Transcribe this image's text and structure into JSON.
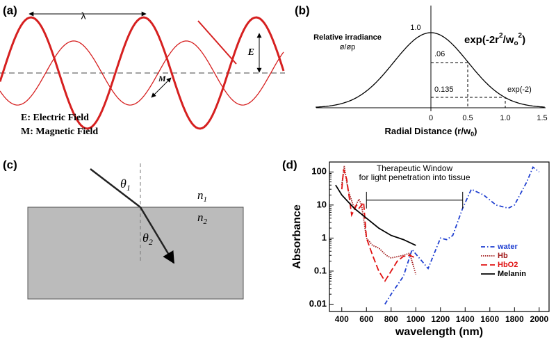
{
  "panel_a": {
    "label": "(a)",
    "wavelength": "λ",
    "e_marker": "E",
    "m_marker": "M",
    "legend": [
      "E: Electric Field",
      "M: Magnetic Field"
    ]
  },
  "panel_b": {
    "label": "(b)",
    "y_title": "Relative irradiance",
    "y_subtitle": "ø/øp",
    "formula": [
      "exp(-2r",
      "2",
      "/w",
      "o",
      "2",
      ")"
    ],
    "peak": "1.0",
    "mark_half": ".06",
    "mark_one": "0.135",
    "mark_exp": "exp(-2)",
    "x_ticks": [
      "0",
      "0.5",
      "1.0",
      "1.5"
    ],
    "x_title": [
      "Radial Distance (r/w",
      "0",
      ")"
    ]
  },
  "panel_c": {
    "label": "(c)",
    "theta1": [
      "θ",
      "1"
    ],
    "theta2": [
      "θ",
      "2"
    ],
    "n1": [
      "n",
      "1"
    ],
    "n2": [
      "n",
      "2"
    ]
  },
  "chart_data": {
    "type": "line",
    "label": "(d)",
    "x_label": "wavelength (nm)",
    "y_label": "Absorbance",
    "xlim": [
      300,
      2080
    ],
    "xticks": [
      400,
      600,
      800,
      1000,
      1200,
      1400,
      1600,
      1800,
      2000
    ],
    "ylim": [
      0.006,
      200
    ],
    "yticks": [
      0.01,
      0.1,
      1,
      10,
      100
    ],
    "yscale": "log",
    "legend": "lower right",
    "annotation": {
      "text": [
        "Therapeutic Window",
        "for light penetration into tissue"
      ],
      "x": [
        600,
        1380
      ],
      "y": 14
    },
    "series": [
      {
        "name": "water",
        "color": "#1f3fd0",
        "style": "dash-dot",
        "x": [
          750,
          800,
          900,
          970,
          1050,
          1100,
          1200,
          1250,
          1300,
          1380,
          1450,
          1550,
          1650,
          1750,
          1800,
          1900,
          1950,
          2000
        ],
        "values": [
          0.01,
          0.02,
          0.07,
          0.45,
          0.2,
          0.12,
          1,
          0.9,
          1.2,
          8,
          30,
          20,
          10,
          8,
          10,
          50,
          140,
          100
        ]
      },
      {
        "name": "Hb",
        "color": "#a01818",
        "style": "dotted",
        "x": [
          400,
          420,
          450,
          500,
          540,
          560,
          600,
          650,
          700,
          760,
          800,
          900,
          950,
          1000
        ],
        "values": [
          40,
          150,
          30,
          8,
          15,
          10,
          1,
          0.6,
          0.5,
          0.3,
          0.25,
          0.3,
          0.35,
          0.08
        ]
      },
      {
        "name": "HbO2",
        "color": "#e01010",
        "style": "dashed",
        "x": [
          400,
          415,
          440,
          480,
          520,
          540,
          577,
          600,
          650,
          700,
          750,
          800,
          850,
          900,
          950,
          1000
        ],
        "values": [
          30,
          120,
          60,
          5,
          10,
          8,
          12,
          1,
          0.3,
          0.1,
          0.05,
          0.1,
          0.2,
          0.28,
          0.3,
          0.25
        ]
      },
      {
        "name": "Melanin",
        "color": "#000000",
        "style": "solid",
        "x": [
          350,
          400,
          500,
          600,
          700,
          800,
          900,
          1000
        ],
        "values": [
          40,
          20,
          8,
          4,
          2,
          1.2,
          0.9,
          0.6
        ]
      }
    ]
  }
}
